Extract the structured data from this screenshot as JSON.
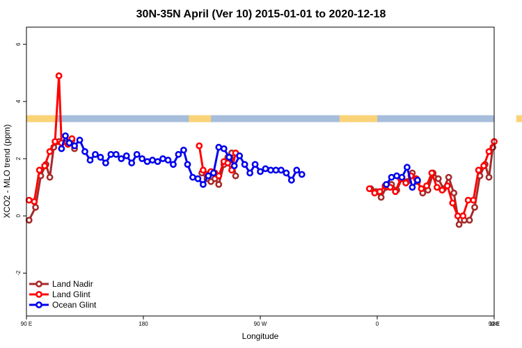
{
  "chart_data": {
    "type": "line",
    "title": "30N-35N April (Ver 10)   2015-01-01 to 2020-12-18",
    "xlabel": "Longitude",
    "ylabel": "XCO2 - MLO trend (ppm)",
    "xlim": [
      90,
      450
    ],
    "ylim": [
      -3.5,
      6.6
    ],
    "x_ticks": [
      {
        "value": 90,
        "label": "90 E"
      },
      {
        "value": 180,
        "label": "180"
      },
      {
        "value": 270,
        "label": "90 W"
      },
      {
        "value": 360,
        "label": "0"
      },
      {
        "value": 450,
        "label": "90 E"
      },
      {
        "value": 540,
        "label": "180"
      }
    ],
    "y_ticks": [
      {
        "value": -2,
        "label": "-2"
      },
      {
        "value": 0,
        "label": "0"
      },
      {
        "value": 2,
        "label": "2"
      },
      {
        "value": 4,
        "label": "4"
      },
      {
        "value": 6,
        "label": "6"
      }
    ],
    "x_display_max": 540,
    "band": {
      "y_bottom": 3.28,
      "y_top": 3.52,
      "land_color": "#fbd377",
      "ocean_color": "#a6bddb",
      "land_segments": [
        [
          90,
          114
        ],
        [
          215,
          232
        ],
        [
          331,
          360
        ],
        [
          467,
          486
        ]
      ]
    },
    "legend_position": "bottom-left",
    "series": [
      {
        "name": "Land Nadir",
        "color": "#a52a2a",
        "segments": [
          [
            [
              92,
              -0.15
            ],
            [
              97,
              0.3
            ],
            [
              101,
              1.4
            ],
            [
              105,
              1.8
            ],
            [
              108,
              1.35
            ],
            [
              111,
              2.4
            ],
            [
              115,
              2.6
            ],
            [
              125,
              2.65
            ],
            [
              127,
              2.35
            ]
          ],
          [
            [
              225,
              1.5
            ],
            [
              229,
              1.3
            ],
            [
              232,
              1.2
            ],
            [
              235,
              1.3
            ],
            [
              238,
              1.1
            ],
            [
              242,
              1.8
            ],
            [
              245,
              2.05
            ],
            [
              248,
              2.2
            ],
            [
              251,
              1.4
            ]
          ],
          [
            [
              355,
              0.95
            ],
            [
              359,
              0.85
            ],
            [
              363,
              0.65
            ],
            [
              367,
              1.0
            ],
            [
              371,
              1.1
            ],
            [
              375,
              0.9
            ],
            [
              379,
              1.3
            ],
            [
              383,
              1.2
            ],
            [
              387,
              1.5
            ],
            [
              391,
              1.2
            ],
            [
              395,
              0.8
            ],
            [
              399,
              0.9
            ],
            [
              403,
              1.5
            ],
            [
              407,
              1.3
            ],
            [
              411,
              0.95
            ],
            [
              415,
              1.35
            ],
            [
              419,
              0.8
            ],
            [
              423,
              -0.3
            ],
            [
              427,
              -0.15
            ],
            [
              431,
              -0.15
            ],
            [
              435,
              0.3
            ],
            [
              439,
              1.4
            ],
            [
              443,
              1.8
            ],
            [
              446,
              1.35
            ],
            [
              449,
              2.4
            ],
            [
              453,
              2.6
            ],
            [
              463,
              2.65
            ],
            [
              465,
              2.35
            ]
          ]
        ]
      },
      {
        "name": "Land Glint",
        "color": "#ff0000",
        "segments": [
          [
            [
              92,
              0.55
            ],
            [
              96,
              0.5
            ],
            [
              100,
              1.6
            ],
            [
              104,
              1.75
            ],
            [
              108,
              2.25
            ],
            [
              112,
              2.6
            ],
            [
              115,
              4.9
            ],
            [
              117,
              2.55
            ],
            [
              122,
              2.5
            ],
            [
              125,
              2.7
            ]
          ],
          [
            [
              223,
              2.45
            ],
            [
              226,
              1.6
            ],
            [
              229,
              1.45
            ],
            [
              232,
              1.55
            ],
            [
              235,
              1.5
            ],
            [
              238,
              1.4
            ],
            [
              242,
              1.9
            ],
            [
              245,
              1.85
            ],
            [
              248,
              1.6
            ],
            [
              251,
              2.2
            ]
          ],
          [
            [
              354,
              0.95
            ],
            [
              358,
              0.8
            ],
            [
              362,
              0.85
            ],
            [
              366,
              1.05
            ],
            [
              370,
              1.0
            ],
            [
              374,
              0.85
            ],
            [
              378,
              1.3
            ],
            [
              382,
              1.15
            ],
            [
              386,
              1.4
            ],
            [
              390,
              1.3
            ],
            [
              394,
              0.95
            ],
            [
              398,
              1.05
            ],
            [
              402,
              1.5
            ],
            [
              406,
              1.0
            ],
            [
              410,
              0.9
            ],
            [
              414,
              1.05
            ],
            [
              418,
              0.45
            ],
            [
              422,
              0.0
            ],
            [
              426,
              0.0
            ],
            [
              430,
              0.55
            ],
            [
              434,
              0.55
            ],
            [
              438,
              1.6
            ],
            [
              442,
              1.75
            ],
            [
              446,
              2.25
            ],
            [
              450,
              2.6
            ],
            [
              453,
              4.9
            ],
            [
              455,
              2.55
            ],
            [
              460,
              2.5
            ],
            [
              463,
              2.7
            ]
          ]
        ]
      },
      {
        "name": "Ocean Glint",
        "color": "#0000ee",
        "segments": [
          [
            [
              117,
              2.35
            ],
            [
              120,
              2.8
            ],
            [
              123,
              2.55
            ],
            [
              127,
              2.45
            ],
            [
              131,
              2.65
            ],
            [
              135,
              2.25
            ],
            [
              139,
              1.95
            ],
            [
              143,
              2.15
            ],
            [
              147,
              2.05
            ],
            [
              151,
              1.85
            ],
            [
              155,
              2.15
            ],
            [
              159,
              2.15
            ],
            [
              163,
              2.0
            ],
            [
              167,
              2.1
            ],
            [
              171,
              1.85
            ],
            [
              175,
              2.15
            ],
            [
              179,
              2.0
            ],
            [
              183,
              1.9
            ],
            [
              187,
              1.95
            ],
            [
              191,
              1.9
            ],
            [
              195,
              2.0
            ],
            [
              199,
              1.95
            ],
            [
              203,
              1.8
            ],
            [
              207,
              2.15
            ],
            [
              211,
              2.3
            ],
            [
              214,
              1.8
            ],
            [
              218,
              1.35
            ],
            [
              222,
              1.3
            ],
            [
              226,
              1.1
            ],
            [
              230,
              1.4
            ],
            [
              234,
              1.5
            ],
            [
              238,
              2.4
            ],
            [
              242,
              2.35
            ],
            [
              246,
              2.05
            ],
            [
              250,
              1.75
            ],
            [
              254,
              2.1
            ],
            [
              258,
              1.8
            ],
            [
              262,
              1.5
            ],
            [
              266,
              1.8
            ],
            [
              270,
              1.55
            ],
            [
              274,
              1.65
            ],
            [
              278,
              1.6
            ],
            [
              282,
              1.6
            ],
            [
              286,
              1.6
            ],
            [
              290,
              1.5
            ],
            [
              294,
              1.25
            ],
            [
              298,
              1.6
            ],
            [
              302,
              1.45
            ]
          ],
          [
            [
              367,
              1.1
            ],
            [
              371,
              1.35
            ],
            [
              375,
              1.4
            ],
            [
              379,
              1.35
            ],
            [
              383,
              1.7
            ],
            [
              387,
              1.0
            ],
            [
              391,
              1.25
            ]
          ],
          [
            [
              455,
              2.35
            ],
            [
              458,
              2.8
            ],
            [
              461,
              2.55
            ],
            [
              465,
              2.45
            ],
            [
              469,
              2.65
            ],
            [
              473,
              2.25
            ],
            [
              477,
              1.95
            ],
            [
              481,
              2.15
            ],
            [
              485,
              2.05
            ],
            [
              489,
              1.85
            ],
            [
              493,
              2.15
            ],
            [
              497,
              2.15
            ]
          ]
        ]
      }
    ]
  }
}
